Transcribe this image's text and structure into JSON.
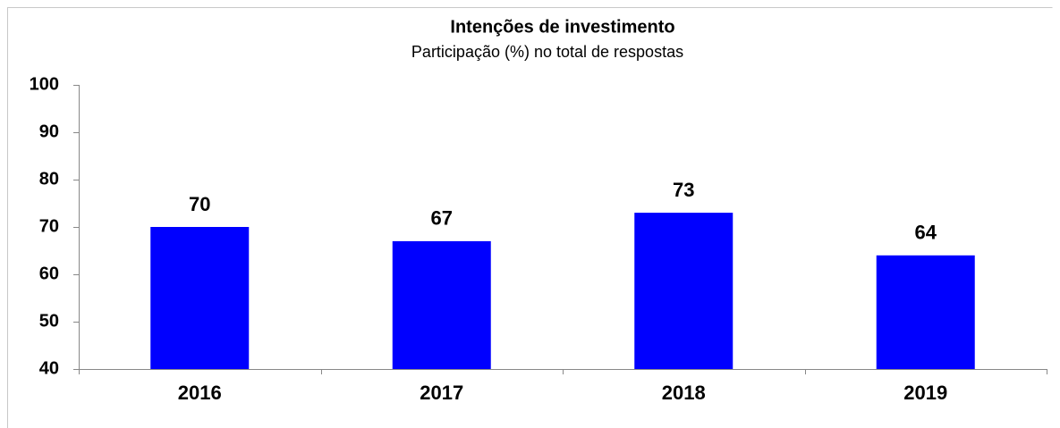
{
  "chart_data": {
    "type": "bar",
    "title": "Intenções de investimento",
    "subtitle": "Participação (%) no total de respostas",
    "categories": [
      "2016",
      "2017",
      "2018",
      "2019"
    ],
    "values": [
      70,
      67,
      73,
      64
    ],
    "color": "#0000ff",
    "ylim": [
      40,
      100
    ],
    "yticks": [
      40,
      50,
      60,
      70,
      80,
      90,
      100
    ],
    "grid": false
  }
}
